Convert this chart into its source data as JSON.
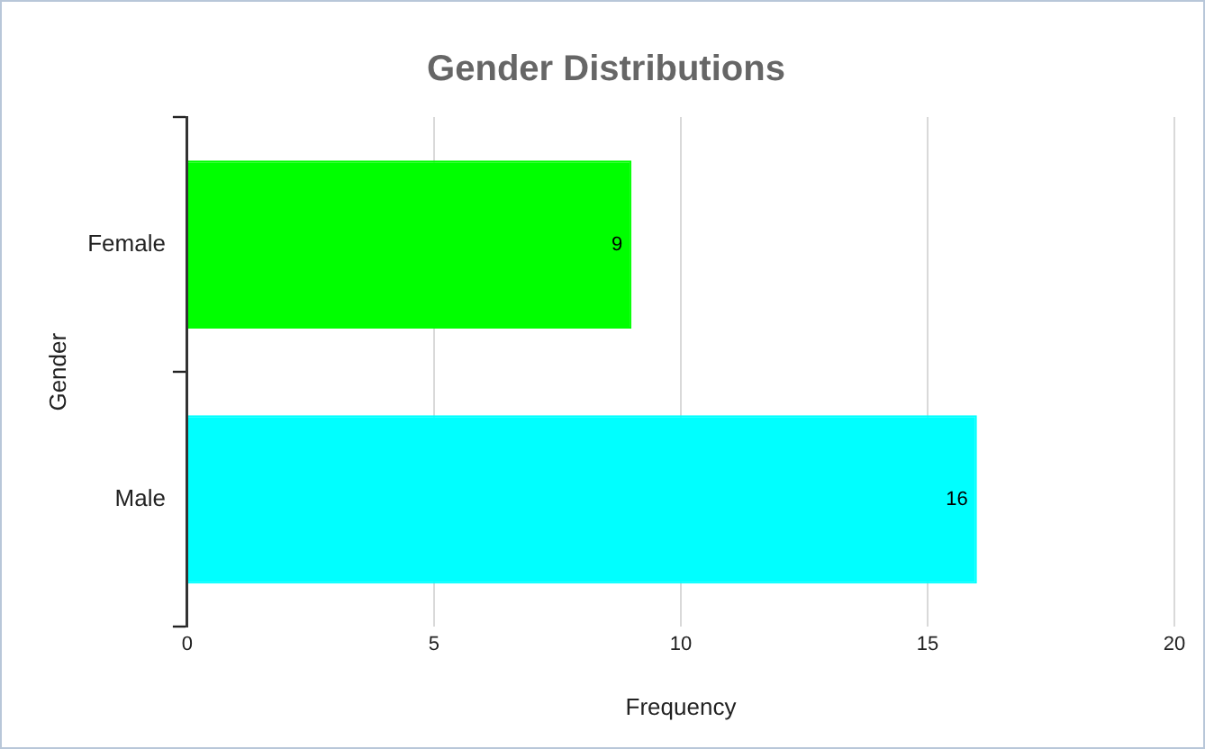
{
  "chart_data": {
    "type": "bar",
    "orientation": "horizontal",
    "title": "Gender Distributions",
    "xlabel": "Frequency",
    "ylabel": "Gender",
    "categories": [
      "Female",
      "Male"
    ],
    "values": [
      9,
      16
    ],
    "colors": [
      "#00ff00",
      "#00ffff"
    ],
    "xlim": [
      0,
      20
    ],
    "xticks": [
      0,
      5,
      10,
      15,
      20
    ],
    "grid": "x",
    "data_labels": true,
    "legend": false
  }
}
